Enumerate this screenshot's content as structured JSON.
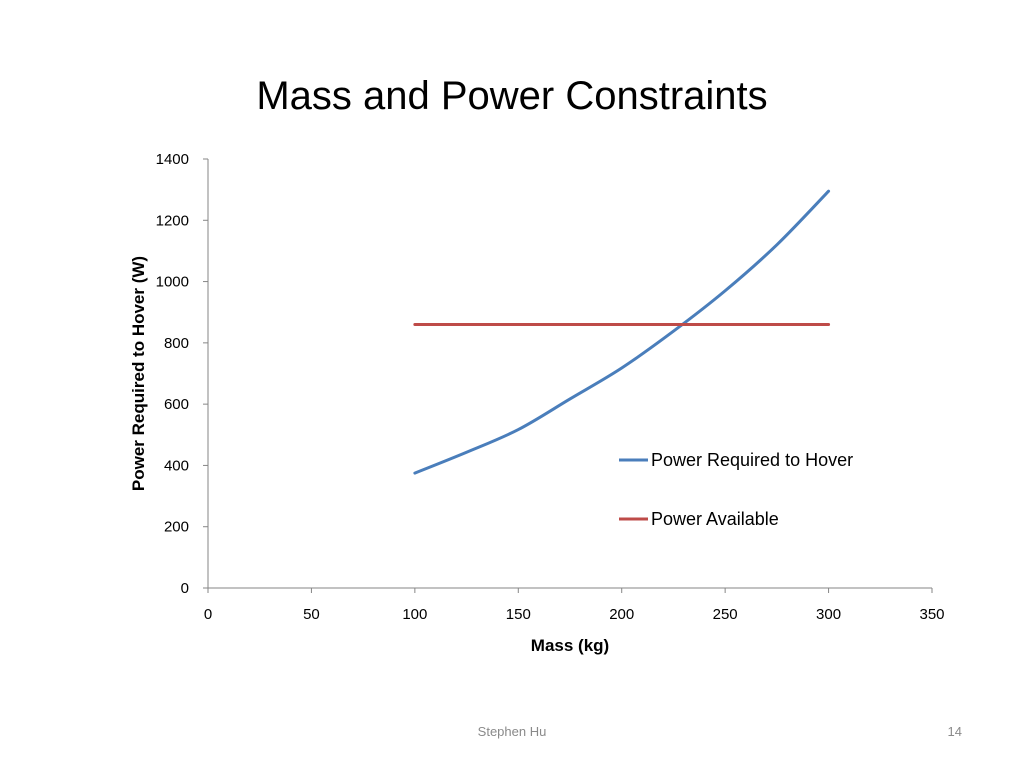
{
  "slide": {
    "title": "Mass and Power Constraints",
    "footer_author": "Stephen Hu",
    "page_number": "14"
  },
  "chart_data": {
    "type": "line",
    "xlabel": "Mass (kg)",
    "ylabel": "Power Required to Hover (W)",
    "xlim": [
      0,
      350
    ],
    "ylim": [
      0,
      1400
    ],
    "xticks": [
      0,
      50,
      100,
      150,
      200,
      250,
      300,
      350
    ],
    "yticks": [
      0,
      200,
      400,
      600,
      800,
      1000,
      1200,
      1400
    ],
    "grid": false,
    "legend_position": "right",
    "series": [
      {
        "name": "Power Required to Hover",
        "color": "#4a7ebb",
        "x": [
          100,
          125,
          150,
          175,
          200,
          225,
          250,
          275,
          300
        ],
        "y": [
          375,
          443,
          517,
          617,
          718,
          838,
          970,
          1120,
          1295
        ]
      },
      {
        "name": "Power Available",
        "color": "#be4b48",
        "x": [
          100,
          300
        ],
        "y": [
          860,
          860
        ]
      }
    ]
  }
}
